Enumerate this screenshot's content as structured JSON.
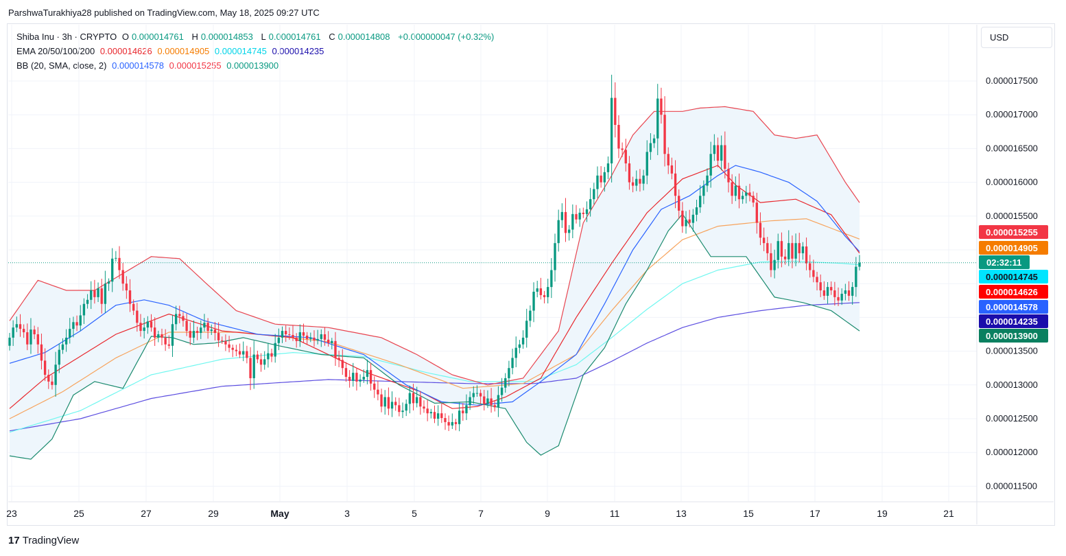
{
  "header": {
    "text": "ParshwaTurakhiya28 published on TradingView.com, May 18, 2025 09:27 UTC"
  },
  "currency_button": "USD",
  "legend": {
    "symbol": "Shiba Inu · 3h · CRYPTO",
    "ohlc": {
      "o_label": "O",
      "o": "0.000014761",
      "h_label": "H",
      "h": "0.000014853",
      "l_label": "L",
      "l": "0.000014761",
      "c_label": "C",
      "c": "0.000014808",
      "change": "+0.000000047 (+0.32%)"
    },
    "ema_label": "EMA 20/50/100/200",
    "ema_values": [
      "0.000014626",
      "0.000014905",
      "0.000014745",
      "0.000014235"
    ],
    "bb_label": "BB (20, SMA, close, 2)",
    "bb_values": [
      "0.000014578",
      "0.000015255",
      "0.000013900"
    ]
  },
  "colors": {
    "up": "#089981",
    "down": "#f23645",
    "ema20": "#e8272d",
    "ema50": "#f7a35c",
    "ema100": "#6ff7f0",
    "ema200": "#5b4de0",
    "bb_basis": "#2962ff",
    "bb_upper": "#e8444f",
    "bb_lower": "#1a8a6e",
    "bb_fill": "#eef6fc",
    "grid": "#f0f3fa"
  },
  "chart_data": {
    "type": "candlestick",
    "title": "Shiba Inu · 3h · CRYPTO",
    "ylim": [
      1.14e-05,
      1.775e-05
    ],
    "y_ticks": [
      "0.000011500",
      "0.000012000",
      "0.000012500",
      "0.000013000",
      "0.000013500",
      "0.000015500",
      "0.000016000",
      "0.000016500",
      "0.000017000",
      "0.000017500"
    ],
    "x_ticks": [
      "23",
      "25",
      "27",
      "29",
      "May",
      "3",
      "5",
      "7",
      "9",
      "11",
      "13",
      "15",
      "17",
      "19",
      "21"
    ],
    "last_price_countdown": "02:32:11",
    "price_badges": [
      {
        "value": "0.000015255",
        "color": "#f23645"
      },
      {
        "value": "0.000014905",
        "color": "#f57c00"
      },
      {
        "value": "0.000014745",
        "color": "#00e5ff"
      },
      {
        "value": "0.000014626",
        "color": "#ff0000"
      },
      {
        "value": "0.000014578",
        "color": "#2962ff"
      },
      {
        "value": "0.000014235",
        "color": "#1a0dab"
      },
      {
        "value": "0.000013900",
        "color": "#0a8060"
      }
    ],
    "closes": [
      1.37,
      1.385,
      1.39,
      1.383,
      1.378,
      1.36,
      1.382,
      1.375,
      1.36,
      1.336,
      1.315,
      1.305,
      1.3,
      1.33,
      1.352,
      1.36,
      1.37,
      1.383,
      1.393,
      1.388,
      1.403,
      1.42,
      1.426,
      1.44,
      1.43,
      1.443,
      1.42,
      1.45,
      1.453,
      1.487,
      1.488,
      1.47,
      1.45,
      1.44,
      1.42,
      1.41,
      1.392,
      1.38,
      1.385,
      1.394,
      1.385,
      1.37,
      1.375,
      1.37,
      1.36,
      1.358,
      1.39,
      1.405,
      1.402,
      1.395,
      1.38,
      1.37,
      1.38,
      1.377,
      1.385,
      1.392,
      1.38,
      1.382,
      1.377,
      1.366,
      1.365,
      1.36,
      1.355,
      1.352,
      1.35,
      1.345,
      1.35,
      1.34,
      1.31,
      1.345,
      1.338,
      1.33,
      1.338,
      1.347,
      1.342,
      1.362,
      1.37,
      1.38,
      1.375,
      1.374,
      1.37,
      1.365,
      1.378,
      1.373,
      1.368,
      1.37,
      1.366,
      1.368,
      1.375,
      1.367,
      1.362,
      1.365,
      1.34,
      1.337,
      1.325,
      1.312,
      1.306,
      1.318,
      1.305,
      1.308,
      1.312,
      1.322,
      1.302,
      1.293,
      1.286,
      1.268,
      1.282,
      1.265,
      1.275,
      1.27,
      1.26,
      1.262,
      1.272,
      1.288,
      1.273,
      1.282,
      1.268,
      1.265,
      1.258,
      1.26,
      1.25,
      1.258,
      1.251,
      1.245,
      1.24,
      1.245,
      1.242,
      1.262,
      1.258,
      1.27,
      1.282,
      1.288,
      1.288,
      1.283,
      1.272,
      1.28,
      1.27,
      1.267,
      1.285,
      1.296,
      1.31,
      1.325,
      1.34,
      1.355,
      1.36,
      1.37,
      1.395,
      1.41,
      1.438,
      1.443,
      1.433,
      1.43,
      1.445,
      1.47,
      1.51,
      1.544,
      1.556,
      1.525,
      1.53,
      1.553,
      1.545,
      1.555,
      1.553,
      1.56,
      1.575,
      1.59,
      1.61,
      1.6,
      1.615,
      1.628,
      1.725,
      1.685,
      1.65,
      1.648,
      1.628,
      1.6,
      1.595,
      1.605,
      1.598,
      1.61,
      1.645,
      1.658,
      1.665,
      1.724,
      1.7,
      1.642,
      1.625,
      1.613,
      1.58,
      1.558,
      1.535,
      1.545,
      1.54,
      1.552,
      1.563,
      1.58,
      1.595,
      1.61,
      1.642,
      1.655,
      1.632,
      1.655,
      1.62,
      1.6,
      1.58,
      1.595,
      1.575,
      1.58,
      1.585,
      1.58,
      1.57,
      1.54,
      1.518,
      1.51,
      1.495,
      1.47,
      1.485,
      1.513,
      1.49,
      1.486,
      1.51,
      1.487,
      1.51,
      1.495,
      1.505,
      1.48,
      1.47,
      1.46,
      1.452,
      1.44,
      1.432,
      1.445,
      1.44,
      1.43,
      1.425,
      1.435,
      1.44,
      1.432,
      1.445,
      1.475,
      1.481
    ],
    "ema20": [
      [
        0,
        1.265
      ],
      [
        10,
        1.31
      ],
      [
        30,
        1.375
      ],
      [
        45,
        1.405
      ],
      [
        60,
        1.38
      ],
      [
        80,
        1.37
      ],
      [
        100,
        1.32
      ],
      [
        116,
        1.29
      ],
      [
        125,
        1.265
      ],
      [
        132,
        1.268
      ],
      [
        140,
        1.282
      ],
      [
        150,
        1.31
      ],
      [
        160,
        1.4
      ],
      [
        170,
        1.48
      ],
      [
        180,
        1.555
      ],
      [
        190,
        1.605
      ],
      [
        200,
        1.625
      ],
      [
        205,
        1.596
      ],
      [
        212,
        1.57
      ],
      [
        222,
        1.575
      ],
      [
        232,
        1.552
      ],
      [
        240,
        1.495
      ],
      [
        250,
        1.462
      ]
    ],
    "ema50": [
      [
        0,
        1.25
      ],
      [
        15,
        1.29
      ],
      [
        30,
        1.34
      ],
      [
        45,
        1.378
      ],
      [
        65,
        1.378
      ],
      [
        90,
        1.364
      ],
      [
        110,
        1.33
      ],
      [
        128,
        1.295
      ],
      [
        145,
        1.302
      ],
      [
        160,
        1.345
      ],
      [
        170,
        1.41
      ],
      [
        180,
        1.47
      ],
      [
        190,
        1.515
      ],
      [
        200,
        1.535
      ],
      [
        215,
        1.543
      ],
      [
        225,
        1.546
      ],
      [
        240,
        1.516
      ],
      [
        250,
        1.49
      ]
    ],
    "ema100": [
      [
        0,
        1.23
      ],
      [
        20,
        1.262
      ],
      [
        40,
        1.315
      ],
      [
        60,
        1.338
      ],
      [
        80,
        1.348
      ],
      [
        100,
        1.342
      ],
      [
        118,
        1.318
      ],
      [
        130,
        1.305
      ],
      [
        148,
        1.305
      ],
      [
        160,
        1.33
      ],
      [
        170,
        1.37
      ],
      [
        180,
        1.412
      ],
      [
        190,
        1.45
      ],
      [
        200,
        1.47
      ],
      [
        212,
        1.482
      ],
      [
        222,
        1.483
      ],
      [
        235,
        1.48
      ],
      [
        250,
        1.474
      ]
    ],
    "ema200": [
      [
        0,
        1.232
      ],
      [
        20,
        1.25
      ],
      [
        40,
        1.28
      ],
      [
        60,
        1.298
      ],
      [
        90,
        1.308
      ],
      [
        110,
        1.305
      ],
      [
        130,
        1.302
      ],
      [
        148,
        1.302
      ],
      [
        160,
        1.31
      ],
      [
        170,
        1.335
      ],
      [
        180,
        1.362
      ],
      [
        190,
        1.385
      ],
      [
        200,
        1.4
      ],
      [
        212,
        1.41
      ],
      [
        225,
        1.418
      ],
      [
        240,
        1.422
      ],
      [
        250,
        1.423
      ]
    ],
    "bb_basis": [
      [
        0,
        1.332
      ],
      [
        10,
        1.348
      ],
      [
        20,
        1.38
      ],
      [
        30,
        1.418
      ],
      [
        38,
        1.426
      ],
      [
        45,
        1.418
      ],
      [
        55,
        1.395
      ],
      [
        70,
        1.375
      ],
      [
        85,
        1.37
      ],
      [
        100,
        1.345
      ],
      [
        112,
        1.3
      ],
      [
        122,
        1.275
      ],
      [
        132,
        1.27
      ],
      [
        142,
        1.275
      ],
      [
        150,
        1.305
      ],
      [
        160,
        1.345
      ],
      [
        168,
        1.42
      ],
      [
        176,
        1.5
      ],
      [
        184,
        1.56
      ],
      [
        192,
        1.58
      ],
      [
        200,
        1.61
      ],
      [
        205,
        1.625
      ],
      [
        212,
        1.615
      ],
      [
        220,
        1.6
      ],
      [
        228,
        1.572
      ],
      [
        236,
        1.52
      ],
      [
        244,
        1.475
      ],
      [
        250,
        1.458
      ]
    ],
    "bb_upper": [
      [
        0,
        1.395
      ],
      [
        8,
        1.455
      ],
      [
        16,
        1.44
      ],
      [
        24,
        1.44
      ],
      [
        32,
        1.465
      ],
      [
        40,
        1.49
      ],
      [
        48,
        1.487
      ],
      [
        56,
        1.448
      ],
      [
        64,
        1.41
      ],
      [
        75,
        1.39
      ],
      [
        90,
        1.385
      ],
      [
        105,
        1.37
      ],
      [
        115,
        1.345
      ],
      [
        125,
        1.315
      ],
      [
        135,
        1.3
      ],
      [
        145,
        1.31
      ],
      [
        155,
        1.38
      ],
      [
        162,
        1.54
      ],
      [
        170,
        1.61
      ],
      [
        176,
        1.67
      ],
      [
        182,
        1.705
      ],
      [
        190,
        1.705
      ],
      [
        195,
        1.71
      ],
      [
        202,
        1.712
      ],
      [
        210,
        1.705
      ],
      [
        216,
        1.67
      ],
      [
        222,
        1.665
      ],
      [
        228,
        1.67
      ],
      [
        236,
        1.6
      ],
      [
        244,
        1.54
      ],
      [
        250,
        1.526
      ]
    ],
    "bb_lower": [
      [
        0,
        1.195
      ],
      [
        6,
        1.19
      ],
      [
        12,
        1.22
      ],
      [
        18,
        1.285
      ],
      [
        24,
        1.305
      ],
      [
        32,
        1.295
      ],
      [
        40,
        1.372
      ],
      [
        46,
        1.37
      ],
      [
        52,
        1.36
      ],
      [
        58,
        1.362
      ],
      [
        66,
        1.37
      ],
      [
        76,
        1.358
      ],
      [
        88,
        1.345
      ],
      [
        100,
        1.34
      ],
      [
        110,
        1.3
      ],
      [
        120,
        1.273
      ],
      [
        130,
        1.275
      ],
      [
        140,
        1.265
      ],
      [
        146,
        1.215
      ],
      [
        150,
        1.196
      ],
      [
        155,
        1.21
      ],
      [
        162,
        1.315
      ],
      [
        168,
        1.355
      ],
      [
        174,
        1.42
      ],
      [
        180,
        1.47
      ],
      [
        186,
        1.528
      ],
      [
        190,
        1.553
      ],
      [
        198,
        1.49
      ],
      [
        208,
        1.49
      ],
      [
        216,
        1.43
      ],
      [
        224,
        1.422
      ],
      [
        232,
        1.41
      ],
      [
        240,
        1.38
      ],
      [
        246,
        1.388
      ],
      [
        250,
        1.39
      ]
    ]
  },
  "footer": {
    "brand": "TradingView",
    "logo": "tradingview-logo-icon"
  }
}
